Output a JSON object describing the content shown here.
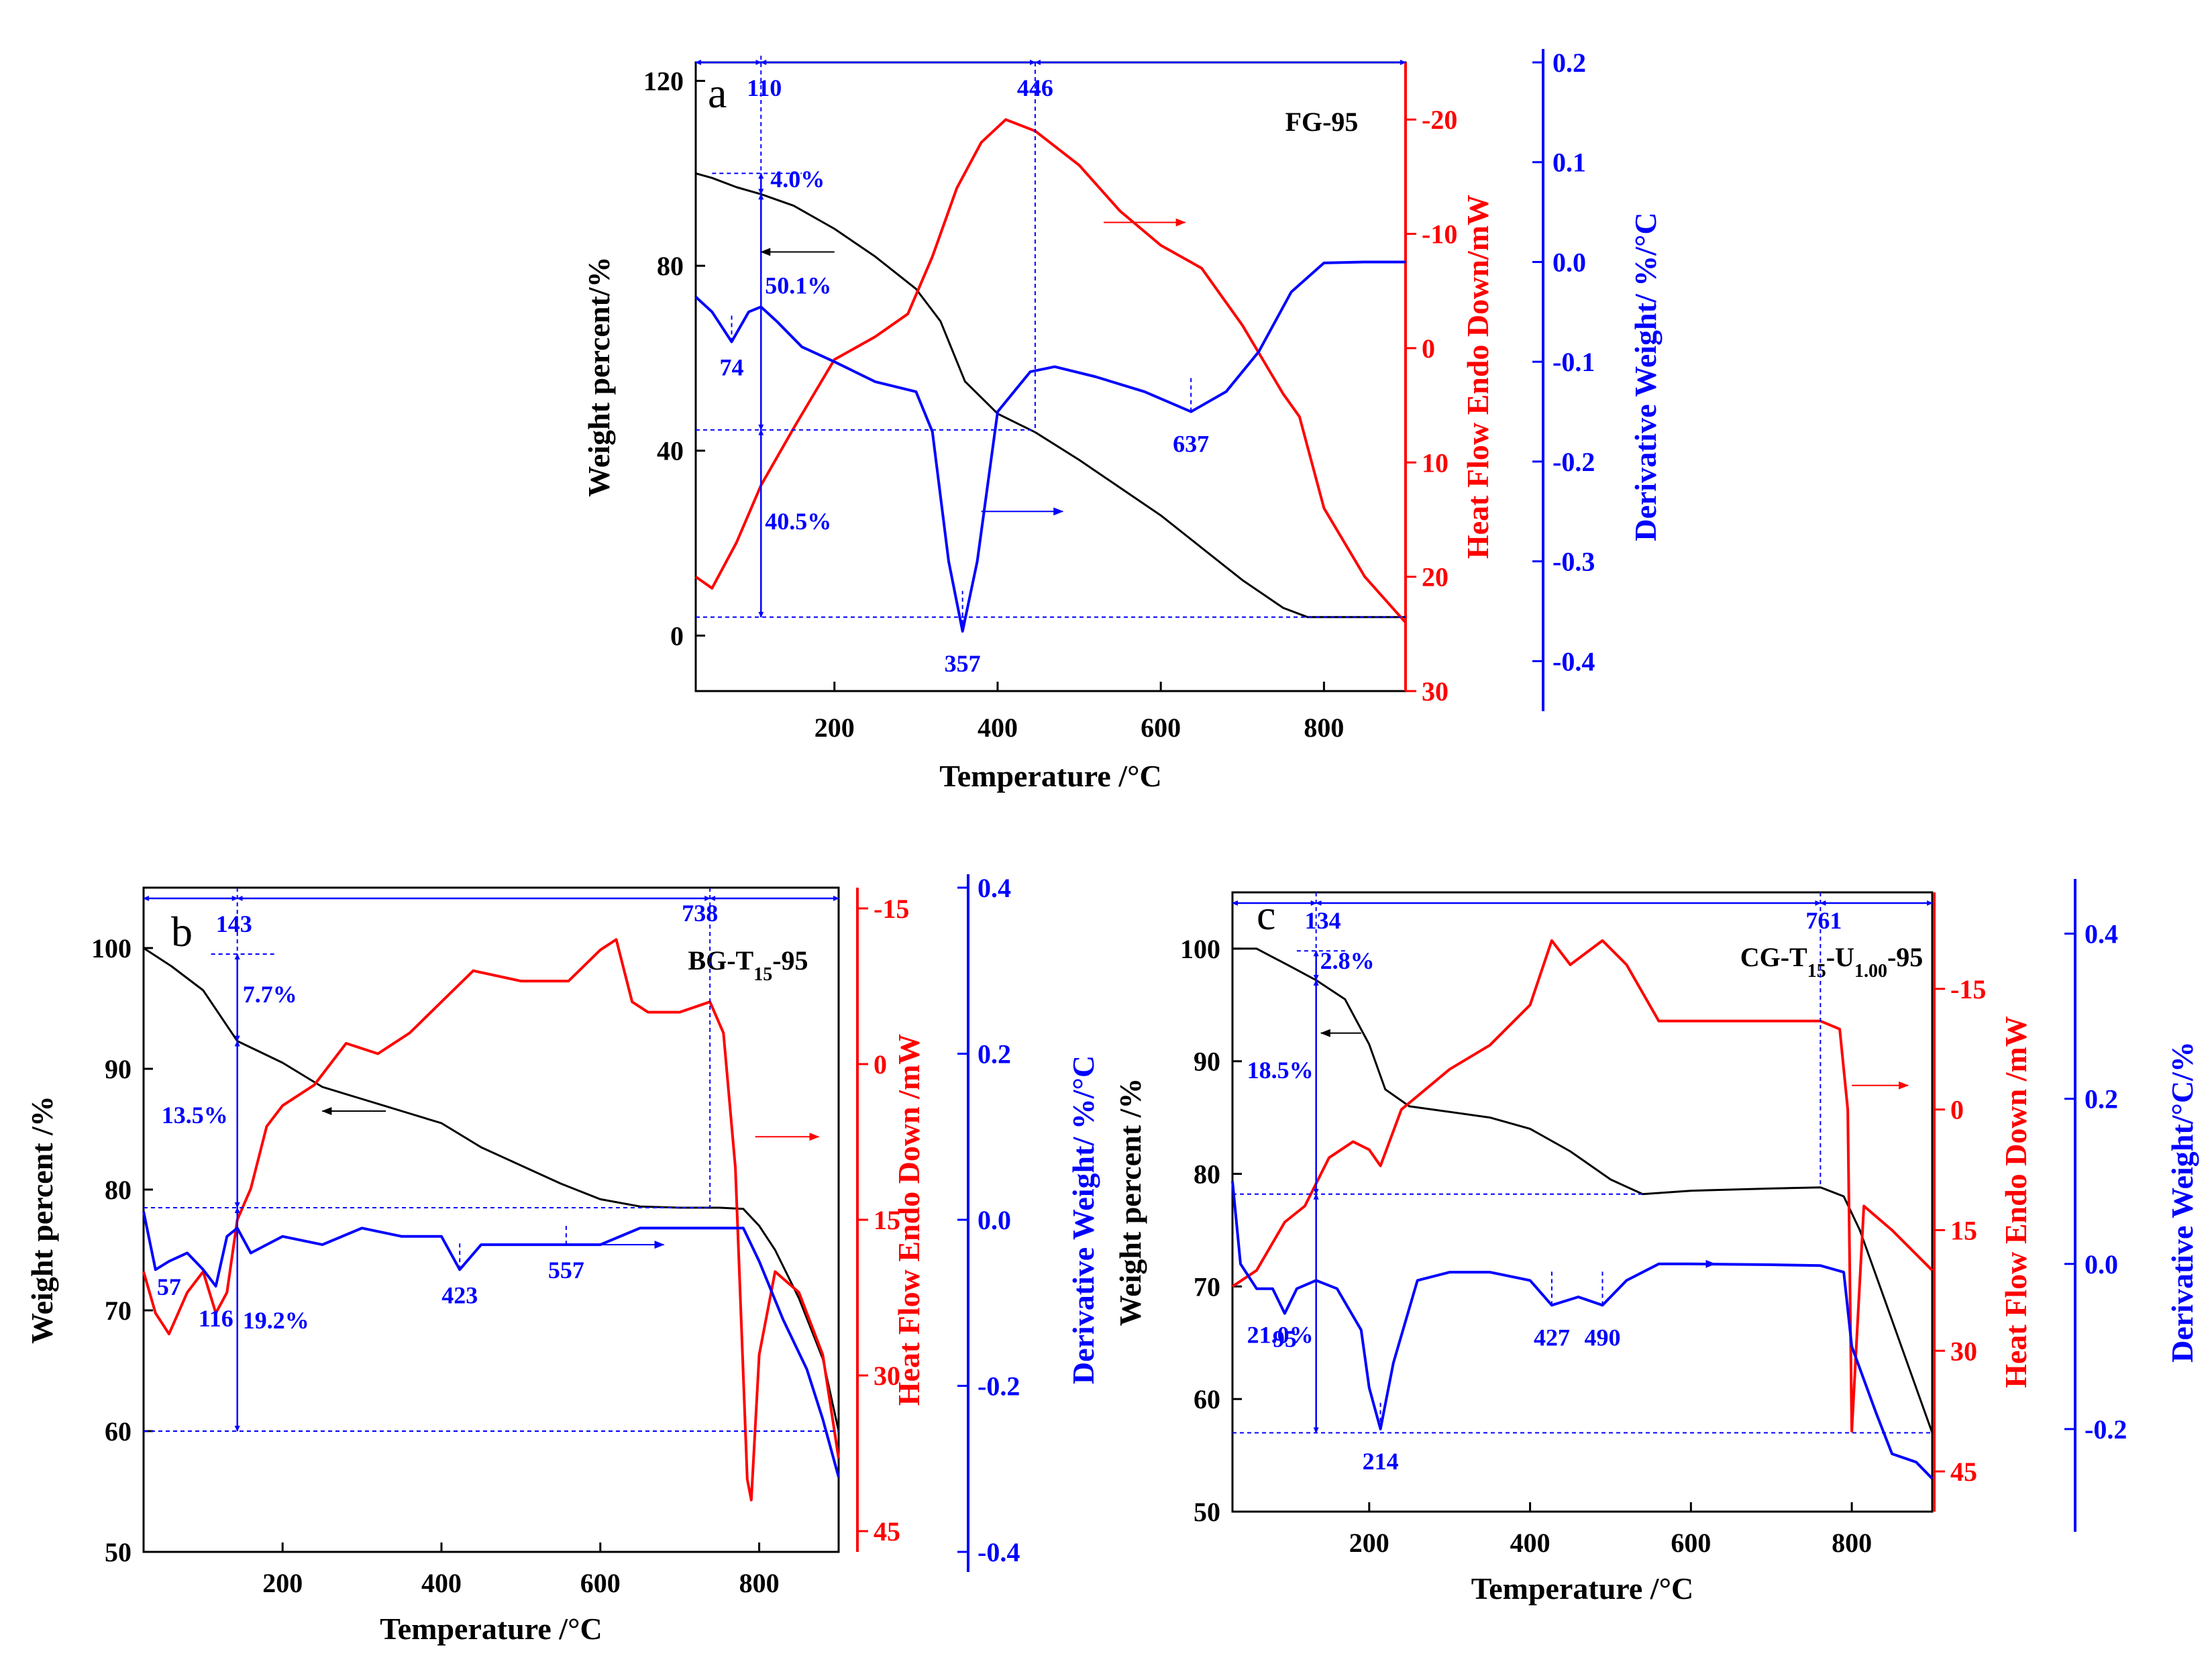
{
  "colors": {
    "weight": "#000000",
    "heat": "#ff0000",
    "deriv": "#0000ff",
    "guide": "#0000ff"
  },
  "chart_data": [
    {
      "type": "line",
      "panel": "a",
      "sample": "FG-95",
      "sample_parts": [
        "FG-95"
      ],
      "xlabel": "Temperature /°C",
      "ylabel_left": "Weight percent/%",
      "ylabel_right1": "Heat Flow Endo Down/mW",
      "ylabel_right2": "Derivative Weight/ %/°C",
      "xlim": [
        30,
        900
      ],
      "xticks": [
        200,
        400,
        600,
        800
      ],
      "ylim_left": [
        -12,
        124
      ],
      "yticks_left": [
        0,
        40,
        80,
        120
      ],
      "ylim_heat": [
        30,
        -25
      ],
      "yticks_heat": [
        30,
        20,
        10,
        0,
        -10,
        -20
      ],
      "ylim_deriv": [
        -0.43,
        0.2
      ],
      "yticks_deriv": [
        -0.4,
        -0.3,
        -0.2,
        -0.1,
        0.0,
        0.1,
        0.2
      ],
      "series": [
        {
          "name": "Weight",
          "axis": "left",
          "color": "#000000",
          "x": [
            30,
            50,
            80,
            110,
            150,
            200,
            250,
            300,
            330,
            360,
            400,
            446,
            500,
            550,
            600,
            650,
            700,
            750,
            780,
            800,
            850,
            900
          ],
          "y": [
            100,
            99,
            97,
            95.5,
            93,
            88,
            82,
            75,
            68,
            55,
            48,
            44,
            38,
            32,
            26,
            19,
            12,
            6,
            4,
            4,
            4,
            4
          ]
        },
        {
          "name": "Heat Flow",
          "axis": "heat",
          "color": "#ff0000",
          "x": [
            30,
            50,
            80,
            110,
            150,
            200,
            250,
            290,
            320,
            350,
            380,
            410,
            446,
            500,
            550,
            600,
            650,
            700,
            750,
            770,
            800,
            850,
            900
          ],
          "y": [
            20,
            21,
            17,
            12,
            7,
            1,
            -1,
            -3,
            -8,
            -14,
            -18,
            -20,
            -19,
            -16,
            -12,
            -9,
            -7,
            -2,
            4,
            6,
            14,
            20,
            24
          ]
        },
        {
          "name": "Derivative",
          "axis": "deriv",
          "color": "#0000ff",
          "x": [
            30,
            50,
            74,
            95,
            110,
            130,
            160,
            200,
            250,
            300,
            320,
            340,
            357,
            375,
            400,
            440,
            470,
            520,
            580,
            637,
            680,
            720,
            760,
            800,
            850,
            900
          ],
          "y": [
            -0.035,
            -0.05,
            -0.08,
            -0.05,
            -0.045,
            -0.06,
            -0.085,
            -0.1,
            -0.12,
            -0.13,
            -0.17,
            -0.3,
            -0.37,
            -0.3,
            -0.15,
            -0.11,
            -0.105,
            -0.115,
            -0.13,
            -0.15,
            -0.13,
            -0.09,
            -0.03,
            -0.001,
            0.0,
            0.0
          ]
        }
      ],
      "annotations": [
        "110",
        "446",
        "4.0%",
        "50.1%",
        "40.5%",
        "74",
        "357",
        "637"
      ]
    },
    {
      "type": "line",
      "panel": "b",
      "sample": "BG-T15-95",
      "sample_parts": [
        "BG-T",
        "15",
        "-95"
      ],
      "xlabel": "Temperature /°C",
      "ylabel_left": "Weight percent /%",
      "ylabel_right1": "Heat Flow Endo Down /mW",
      "ylabel_right2": "Derivative Weight/ %/°C",
      "xlim": [
        25,
        900
      ],
      "xticks": [
        200,
        400,
        600,
        800
      ],
      "ylim_left": [
        50,
        105
      ],
      "yticks_left": [
        50,
        60,
        70,
        80,
        90,
        100
      ],
      "ylim_heat": [
        47,
        -17
      ],
      "yticks_heat": [
        45,
        30,
        15,
        0,
        -15
      ],
      "ylim_deriv": [
        -0.4,
        0.4
      ],
      "yticks_deriv": [
        -0.4,
        -0.2,
        0.0,
        0.2,
        0.4
      ],
      "series": [
        {
          "name": "Weight",
          "axis": "left",
          "color": "#000000",
          "x": [
            25,
            60,
            100,
            143,
            200,
            250,
            300,
            350,
            400,
            450,
            500,
            550,
            600,
            650,
            700,
            750,
            780,
            800,
            820,
            850,
            880,
            900
          ],
          "y": [
            100,
            98.5,
            96.5,
            92.3,
            90.5,
            88.5,
            87.5,
            86.5,
            85.5,
            83.5,
            82,
            80.5,
            79.2,
            78.6,
            78.5,
            78.5,
            78.4,
            77,
            75,
            71,
            66,
            60
          ]
        },
        {
          "name": "Heat Flow",
          "axis": "heat",
          "color": "#ff0000",
          "x": [
            25,
            40,
            57,
            80,
            100,
            116,
            130,
            143,
            160,
            180,
            200,
            240,
            280,
            320,
            360,
            400,
            440,
            500,
            560,
            600,
            620,
            640,
            660,
            700,
            738,
            755,
            770,
            785,
            790,
            800,
            820,
            850,
            880,
            900
          ],
          "y": [
            20,
            24,
            26,
            22,
            20,
            24,
            22,
            15,
            12,
            6,
            4,
            2,
            -2,
            -1,
            -3,
            -6,
            -9,
            -8,
            -8,
            -11,
            -12,
            -6,
            -5,
            -5,
            -6,
            -3,
            10,
            40,
            42,
            28,
            20,
            22,
            28,
            38
          ]
        },
        {
          "name": "Derivative",
          "axis": "deriv",
          "color": "#0000ff",
          "x": [
            25,
            40,
            57,
            80,
            100,
            116,
            130,
            143,
            160,
            180,
            200,
            250,
            300,
            350,
            400,
            423,
            450,
            500,
            557,
            600,
            650,
            700,
            750,
            780,
            800,
            830,
            860,
            880,
            900
          ],
          "y": [
            0.01,
            -0.06,
            -0.05,
            -0.04,
            -0.06,
            -0.08,
            -0.02,
            -0.01,
            -0.04,
            -0.03,
            -0.02,
            -0.03,
            -0.01,
            -0.02,
            -0.02,
            -0.06,
            -0.03,
            -0.03,
            -0.03,
            -0.03,
            -0.01,
            -0.01,
            -0.01,
            -0.01,
            -0.05,
            -0.12,
            -0.18,
            -0.24,
            -0.31
          ]
        }
      ],
      "annotations": [
        "143",
        "738",
        "7.7%",
        "13.5%",
        "19.2%",
        "57",
        "116",
        "423",
        "557"
      ]
    },
    {
      "type": "line",
      "panel": "c",
      "sample": "CG-T15-U1.00-95",
      "sample_parts": [
        "CG-T",
        "15",
        "-U",
        "1.00",
        "-95"
      ],
      "xlabel": "Temperature /°C",
      "ylabel_left": "Weight percent /%",
      "ylabel_right1": "Heat Flow Endo Down /mW",
      "ylabel_right2": "Derivative Weight/°C/%",
      "xlim": [
        30,
        900
      ],
      "xticks": [
        200,
        400,
        600,
        800
      ],
      "ylim_left": [
        50,
        105
      ],
      "yticks_left": [
        50,
        60,
        70,
        80,
        90,
        100
      ],
      "ylim_heat": [
        50,
        -27
      ],
      "yticks_heat": [
        45,
        30,
        15,
        0,
        -15
      ],
      "ylim_deriv": [
        -0.3,
        0.45
      ],
      "yticks_deriv": [
        -0.2,
        0.0,
        0.2,
        0.4
      ],
      "series": [
        {
          "name": "Weight",
          "axis": "left",
          "color": "#000000",
          "x": [
            30,
            60,
            100,
            134,
            170,
            200,
            220,
            250,
            300,
            350,
            400,
            450,
            500,
            540,
            600,
            700,
            761,
            790,
            810,
            850,
            880,
            900
          ],
          "y": [
            100,
            100,
            98.5,
            97.2,
            95.5,
            91.5,
            87.5,
            86,
            85.5,
            85,
            84,
            82,
            79.5,
            78.2,
            78.5,
            78.7,
            78.8,
            78,
            75,
            67,
            61,
            57
          ]
        },
        {
          "name": "Heat Flow",
          "axis": "heat",
          "color": "#ff0000",
          "x": [
            30,
            60,
            95,
            120,
            150,
            180,
            200,
            214,
            240,
            300,
            350,
            400,
            427,
            450,
            490,
            520,
            560,
            600,
            700,
            761,
            785,
            795,
            800,
            815,
            850,
            900
          ],
          "y": [
            22,
            20,
            14,
            12,
            6,
            4,
            5,
            7,
            0,
            -5,
            -8,
            -13,
            -21,
            -18,
            -21,
            -18,
            -11,
            -11,
            -11,
            -11,
            -10,
            0,
            40,
            12,
            15,
            20
          ]
        },
        {
          "name": "Derivative",
          "axis": "deriv",
          "color": "#0000ff",
          "x": [
            30,
            40,
            60,
            80,
            95,
            110,
            134,
            160,
            190,
            200,
            214,
            230,
            260,
            300,
            350,
            400,
            427,
            460,
            490,
            520,
            560,
            600,
            700,
            761,
            790,
            800,
            830,
            850,
            880,
            900
          ],
          "y": [
            0.1,
            0.0,
            -0.03,
            -0.03,
            -0.06,
            -0.03,
            -0.02,
            -0.03,
            -0.08,
            -0.15,
            -0.2,
            -0.12,
            -0.02,
            -0.01,
            -0.01,
            -0.02,
            -0.05,
            -0.04,
            -0.05,
            -0.02,
            0.0,
            0.0,
            -0.001,
            -0.002,
            -0.01,
            -0.1,
            -0.18,
            -0.23,
            -0.24,
            -0.26
          ]
        }
      ],
      "annotations": [
        "134",
        "761",
        "2.8%",
        "18.5%",
        "21.0%",
        "95",
        "214",
        "427",
        "490"
      ]
    }
  ]
}
